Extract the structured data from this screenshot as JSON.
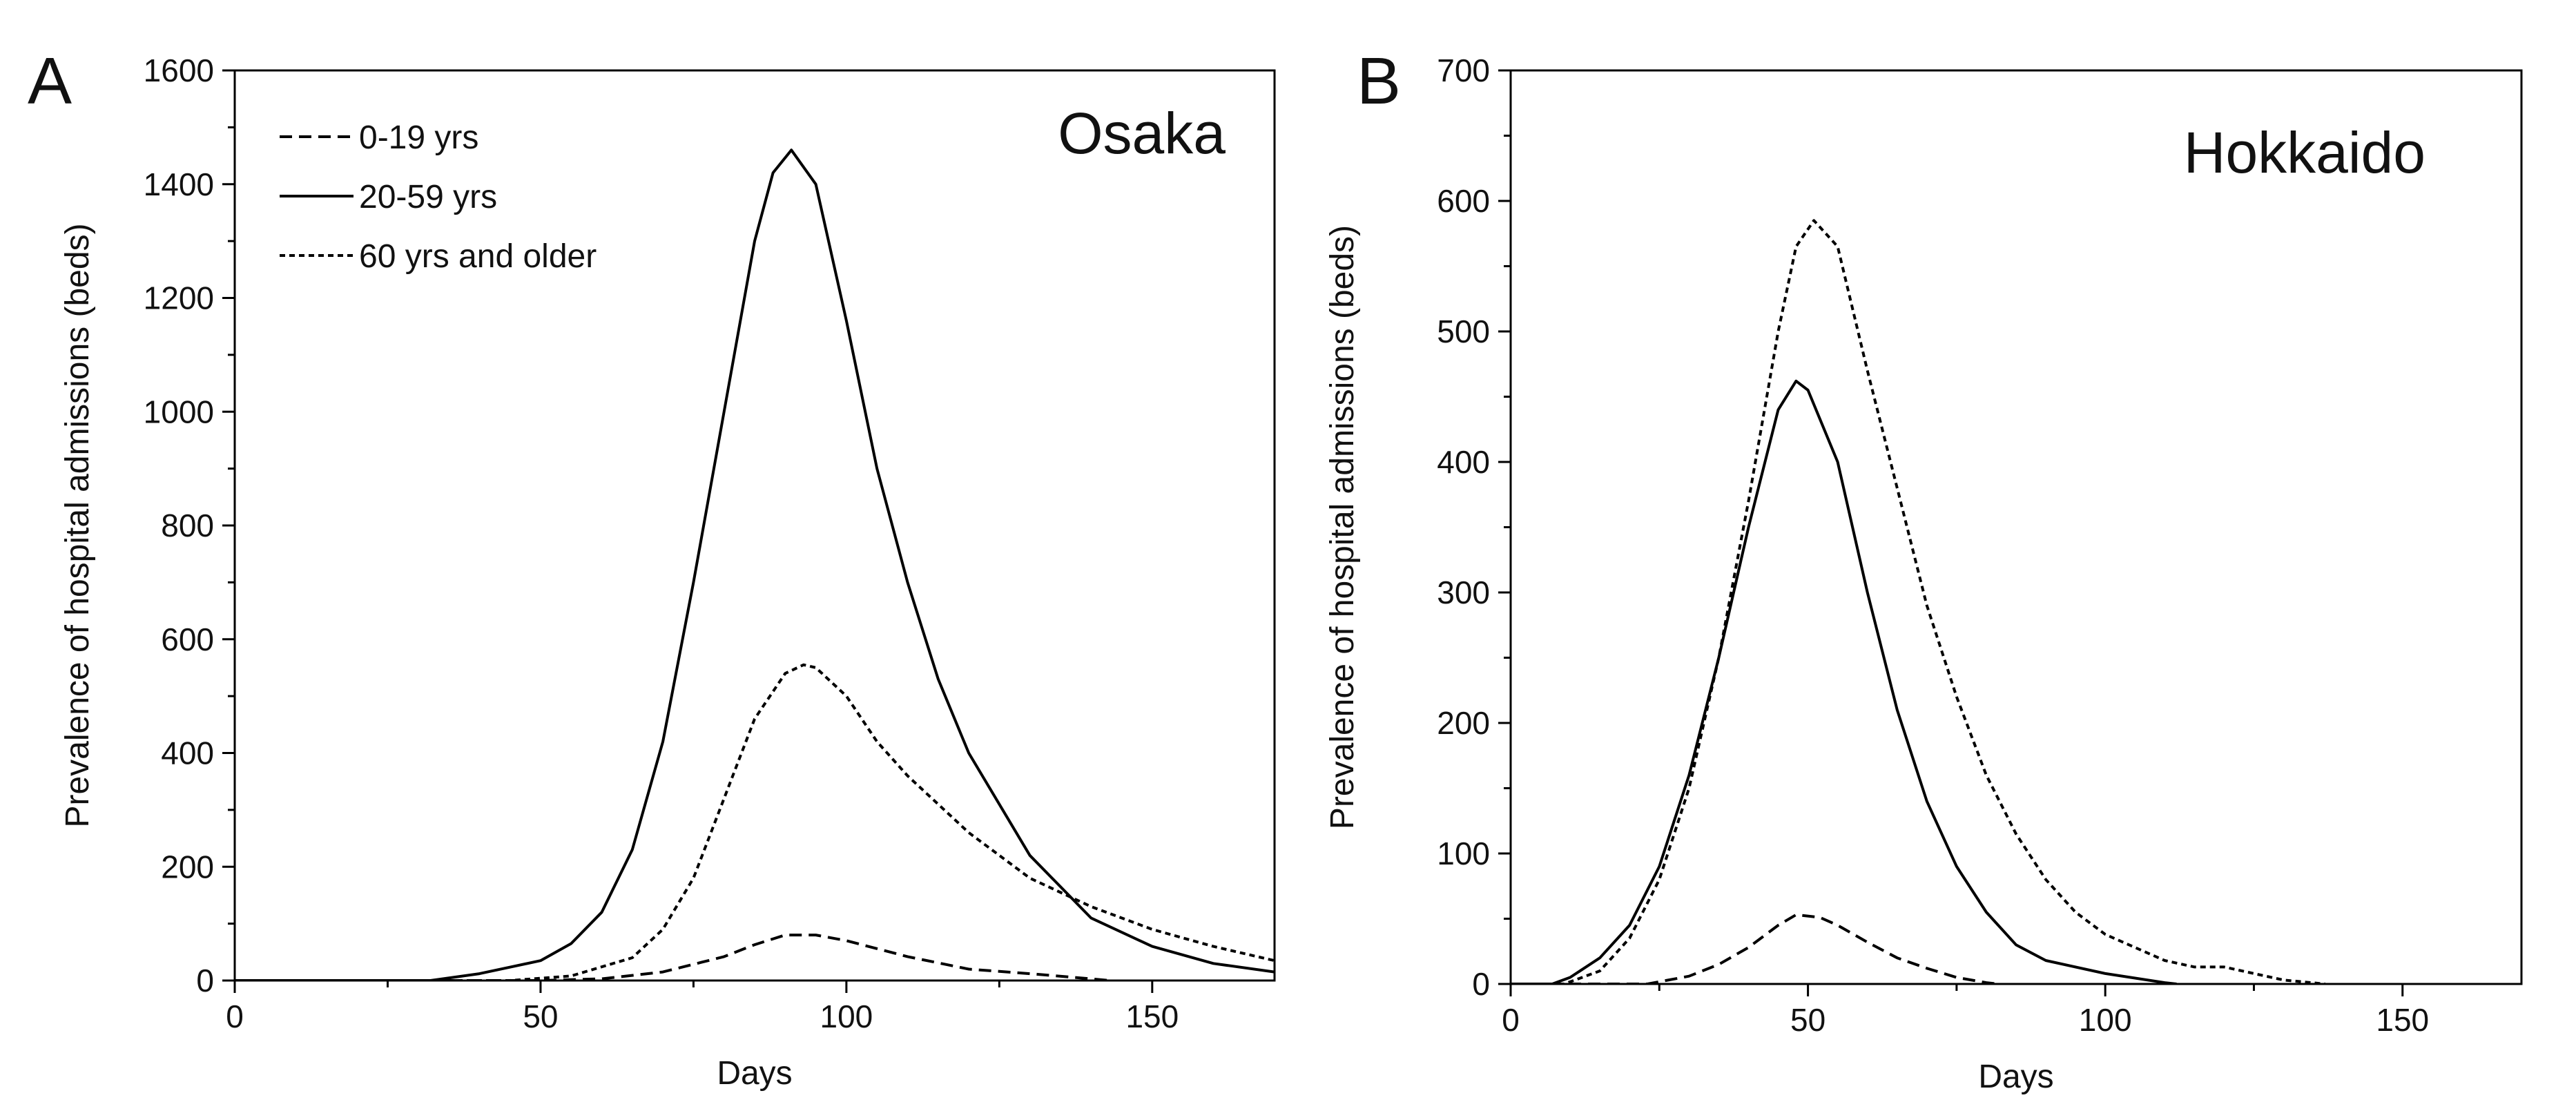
{
  "figure": {
    "stroke_color": "#000000",
    "background": "#ffffff"
  },
  "chart_data": [
    {
      "panel_label": "A",
      "title": "Osaka",
      "type": "line",
      "xlabel": "Days",
      "ylabel": "Prevalence of hospital admissions (beds)",
      "xlim": [
        0,
        170
      ],
      "ylim": [
        0,
        1600
      ],
      "x_ticks": [
        0,
        50,
        100,
        150
      ],
      "y_ticks": [
        0,
        200,
        400,
        600,
        800,
        1000,
        1200,
        1400,
        1600
      ],
      "grid": false,
      "legend_position": "top-left",
      "series": [
        {
          "name": "0-19 yrs",
          "dash": "dashed",
          "x": [
            0,
            50,
            60,
            70,
            80,
            85,
            90,
            95,
            100,
            110,
            120,
            130,
            140,
            143
          ],
          "y": [
            0,
            0,
            3,
            15,
            42,
            63,
            80,
            80,
            70,
            42,
            20,
            12,
            3,
            0
          ]
        },
        {
          "name": "20-59 yrs",
          "dash": "solid",
          "x": [
            0,
            32,
            40,
            50,
            55,
            60,
            65,
            70,
            75,
            80,
            85,
            88,
            91,
            95,
            100,
            105,
            110,
            115,
            120,
            130,
            140,
            150,
            160,
            170
          ],
          "y": [
            0,
            0,
            12,
            35,
            65,
            120,
            230,
            420,
            700,
            1000,
            1300,
            1420,
            1460,
            1400,
            1160,
            900,
            700,
            530,
            400,
            220,
            110,
            60,
            30,
            15
          ]
        },
        {
          "name": "60 yrs and older",
          "dash": "dotted",
          "x": [
            0,
            45,
            55,
            65,
            70,
            75,
            80,
            85,
            90,
            93,
            95,
            100,
            105,
            110,
            120,
            130,
            140,
            150,
            160,
            170
          ],
          "y": [
            0,
            0,
            8,
            40,
            90,
            180,
            320,
            460,
            540,
            555,
            550,
            500,
            420,
            360,
            260,
            180,
            130,
            90,
            60,
            35
          ]
        }
      ]
    },
    {
      "panel_label": "B",
      "title": "Hokkaido",
      "type": "line",
      "xlabel": "Days",
      "ylabel": "Prevalence of hospital admissions (beds)",
      "xlim": [
        0,
        170
      ],
      "ylim": [
        0,
        700
      ],
      "x_ticks": [
        0,
        50,
        100,
        150
      ],
      "y_ticks": [
        0,
        100,
        200,
        300,
        400,
        500,
        600,
        700
      ],
      "grid": false,
      "series": [
        {
          "name": "0-19 yrs",
          "dash": "dashed",
          "x": [
            0,
            23,
            30,
            35,
            40,
            45,
            48,
            52,
            55,
            60,
            65,
            70,
            75,
            80,
            82
          ],
          "y": [
            0,
            0,
            6,
            15,
            28,
            45,
            53,
            51,
            45,
            32,
            20,
            12,
            5,
            1,
            0
          ]
        },
        {
          "name": "20-59 yrs",
          "dash": "solid",
          "x": [
            0,
            7,
            10,
            15,
            20,
            25,
            30,
            35,
            40,
            45,
            48,
            50,
            55,
            60,
            65,
            70,
            75,
            80,
            85,
            90,
            100,
            110,
            112
          ],
          "y": [
            0,
            0,
            5,
            20,
            45,
            90,
            160,
            250,
            350,
            440,
            462,
            455,
            400,
            300,
            210,
            140,
            90,
            55,
            30,
            18,
            8,
            1,
            0
          ]
        },
        {
          "name": "60 yrs and older",
          "dash": "dotted",
          "x": [
            0,
            9,
            15,
            20,
            25,
            30,
            35,
            40,
            45,
            48,
            51,
            55,
            60,
            65,
            70,
            75,
            80,
            85,
            90,
            95,
            100,
            110,
            115,
            120,
            125,
            130,
            137
          ],
          "y": [
            0,
            0,
            10,
            35,
            80,
            150,
            250,
            370,
            500,
            565,
            585,
            565,
            470,
            380,
            290,
            220,
            160,
            115,
            80,
            55,
            38,
            18,
            13,
            13,
            8,
            3,
            0
          ]
        }
      ]
    }
  ]
}
